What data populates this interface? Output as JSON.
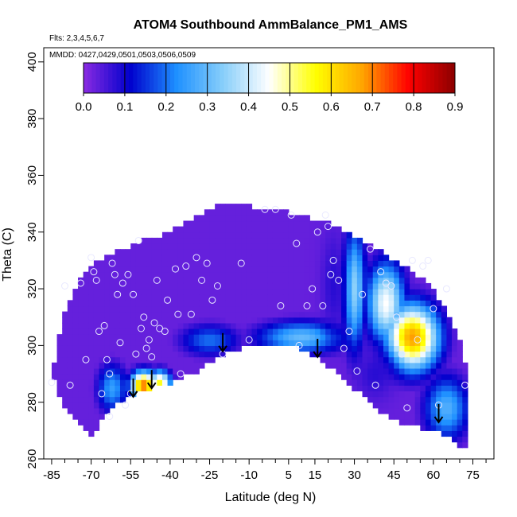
{
  "chart_data": {
    "type": "heatmap",
    "title": "ATOM4 Southbound AmmBalance_PM1_AMS",
    "subtitle": "Flts: 2,3,4,5,6,7",
    "annotation": "MMDD: 0427,0429,0501,0503,0506,0509",
    "xlabel": "Latitude (deg N)",
    "ylabel": "Theta (C)",
    "xlim": [
      -88,
      83
    ],
    "ylim": [
      260,
      405
    ],
    "xticks": [
      -85,
      -70,
      -55,
      -40,
      -25,
      -10,
      5,
      15,
      30,
      45,
      60,
      75
    ],
    "yticks": [
      260,
      280,
      300,
      320,
      340,
      360,
      380,
      400
    ],
    "colorbar": {
      "ticks": [
        0.0,
        0.1,
        0.2,
        0.3,
        0.4,
        0.5,
        0.6,
        0.7,
        0.8,
        0.9
      ],
      "tick_labels": [
        "0.0",
        "0.1",
        "0.2",
        "0.3",
        "0.4",
        "0.5",
        "0.6",
        "0.7",
        "0.8",
        "0.9"
      ],
      "range": [
        0,
        0.9
      ],
      "placement": "top-inside"
    },
    "colormap": [
      "#8a2be2",
      "#0000cd",
      "#1e90ff",
      "#87cefa",
      "#ffffff",
      "#ffff00",
      "#ffa500",
      "#ff0000",
      "#8b0000"
    ],
    "domain_upper": [
      [
        -85,
        290
      ],
      [
        -80,
        312
      ],
      [
        -75,
        322
      ],
      [
        -70,
        328
      ],
      [
        -60,
        333
      ],
      [
        -50,
        337
      ],
      [
        -40,
        340
      ],
      [
        -30,
        345
      ],
      [
        -20,
        350
      ],
      [
        -10,
        349
      ],
      [
        0,
        348
      ],
      [
        10,
        346
      ],
      [
        20,
        343
      ],
      [
        30,
        338
      ],
      [
        40,
        333
      ],
      [
        50,
        327
      ],
      [
        58,
        322
      ],
      [
        65,
        312
      ],
      [
        70,
        302
      ],
      [
        73,
        290
      ]
    ],
    "domain_lower": [
      [
        -85,
        290
      ],
      [
        -80,
        278
      ],
      [
        -75,
        272
      ],
      [
        -70,
        268
      ],
      [
        -65,
        275
      ],
      [
        -60,
        280
      ],
      [
        -50,
        284
      ],
      [
        -40,
        287
      ],
      [
        -30,
        291
      ],
      [
        -20,
        297
      ],
      [
        -10,
        300
      ],
      [
        0,
        301
      ],
      [
        10,
        299
      ],
      [
        20,
        293
      ],
      [
        30,
        285
      ],
      [
        40,
        277
      ],
      [
        50,
        272
      ],
      [
        60,
        270
      ],
      [
        65,
        268
      ],
      [
        70,
        265
      ],
      [
        73,
        265
      ]
    ],
    "field_hotspots": [
      {
        "lat": -50,
        "theta": 286,
        "value": 0.72,
        "sigma_lat": 3.5,
        "sigma_theta": 3.5
      },
      {
        "lat": -44,
        "theta": 287,
        "value": 0.55,
        "sigma_lat": 3,
        "sigma_theta": 3
      },
      {
        "lat": 52,
        "theta": 303,
        "value": 0.68,
        "sigma_lat": 7,
        "sigma_theta": 8
      },
      {
        "lat": 42,
        "theta": 315,
        "value": 0.45,
        "sigma_lat": 5,
        "sigma_theta": 10
      },
      {
        "lat": 30,
        "theta": 320,
        "value": 0.35,
        "sigma_lat": 3,
        "sigma_theta": 15
      },
      {
        "lat": 10,
        "theta": 303,
        "value": 0.3,
        "sigma_lat": 12,
        "sigma_theta": 4
      },
      {
        "lat": 65,
        "theta": 278,
        "value": 0.28,
        "sigma_lat": 6,
        "sigma_theta": 8
      },
      {
        "lat": -25,
        "theta": 302,
        "value": 0.2,
        "sigma_lat": 8,
        "sigma_theta": 4
      },
      {
        "lat": -62,
        "theta": 285,
        "value": 0.25,
        "sigma_lat": 4,
        "sigma_theta": 6
      }
    ],
    "dark_bands": [
      {
        "lat": 22,
        "theta": 322,
        "value": 0.08,
        "sigma_lat": 3,
        "sigma_theta": 12
      },
      {
        "lat": 38,
        "theta": 290,
        "value": 0.08,
        "sigma_lat": 5,
        "sigma_theta": 6
      }
    ],
    "background_value": 0.03,
    "sample_points": [
      [
        -85,
        287
      ],
      [
        -80,
        321
      ],
      [
        -78,
        286
      ],
      [
        -74,
        322
      ],
      [
        -72,
        295
      ],
      [
        -70,
        331
      ],
      [
        -69,
        326
      ],
      [
        -68,
        323
      ],
      [
        -67,
        305
      ],
      [
        -66,
        283
      ],
      [
        -65,
        307
      ],
      [
        -64,
        295
      ],
      [
        -63,
        290
      ],
      [
        -63,
        275
      ],
      [
        -62,
        329
      ],
      [
        -61,
        325
      ],
      [
        -60,
        318
      ],
      [
        -59,
        301
      ],
      [
        -58,
        322
      ],
      [
        -57,
        279
      ],
      [
        -56,
        325
      ],
      [
        -55,
        283
      ],
      [
        -54,
        318
      ],
      [
        -53,
        297
      ],
      [
        -52,
        337
      ],
      [
        -51,
        306
      ],
      [
        -50,
        310
      ],
      [
        -49,
        299
      ],
      [
        -48,
        302
      ],
      [
        -47,
        296
      ],
      [
        -46,
        308
      ],
      [
        -45,
        323
      ],
      [
        -44,
        306
      ],
      [
        -42,
        305
      ],
      [
        -41,
        316
      ],
      [
        -38,
        327
      ],
      [
        -37,
        311
      ],
      [
        -36,
        290
      ],
      [
        -34,
        328
      ],
      [
        -32,
        311
      ],
      [
        -30,
        331
      ],
      [
        -28,
        323
      ],
      [
        -26,
        329
      ],
      [
        -24,
        316
      ],
      [
        -22,
        321
      ],
      [
        -20,
        297
      ],
      [
        -13,
        329
      ],
      [
        -10,
        302
      ],
      [
        -4,
        348
      ],
      [
        0,
        348
      ],
      [
        2,
        314
      ],
      [
        6,
        346
      ],
      [
        8,
        336
      ],
      [
        9,
        300
      ],
      [
        12,
        314
      ],
      [
        14,
        320
      ],
      [
        16,
        340
      ],
      [
        18,
        314
      ],
      [
        19,
        346
      ],
      [
        20,
        342
      ],
      [
        21,
        325
      ],
      [
        22,
        330
      ],
      [
        24,
        323
      ],
      [
        26,
        299
      ],
      [
        28,
        305
      ],
      [
        31,
        291
      ],
      [
        33,
        318
      ],
      [
        36,
        334
      ],
      [
        38,
        286
      ],
      [
        40,
        326
      ],
      [
        42,
        322
      ],
      [
        44,
        321
      ],
      [
        46,
        310
      ],
      [
        48,
        297
      ],
      [
        50,
        278
      ],
      [
        52,
        330
      ],
      [
        54,
        302
      ],
      [
        56,
        328
      ],
      [
        58,
        330
      ],
      [
        60,
        313
      ],
      [
        62,
        279
      ],
      [
        65,
        320
      ],
      [
        72,
        286
      ]
    ],
    "arrows": [
      {
        "lat": -20,
        "theta": 301,
        "direction": "down"
      },
      {
        "lat": 16,
        "theta": 299,
        "direction": "down"
      },
      {
        "lat": -54,
        "theta": 285,
        "direction": "down"
      },
      {
        "lat": -47,
        "theta": 288,
        "direction": "down"
      },
      {
        "lat": 62,
        "theta": 276,
        "direction": "down"
      }
    ]
  }
}
